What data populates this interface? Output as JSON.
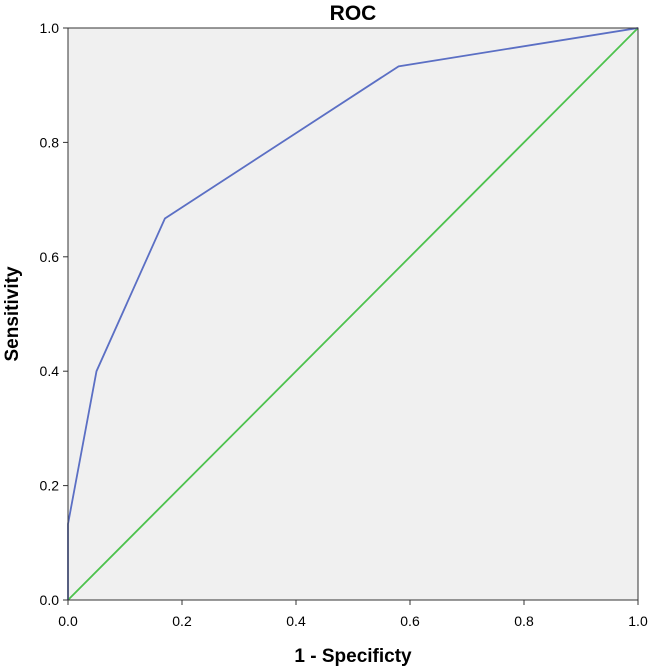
{
  "chart_data": {
    "type": "line",
    "title": "ROC",
    "xlabel": "1 - Specificty",
    "ylabel": "Sensitivity",
    "xlim": [
      0,
      1
    ],
    "ylim": [
      0,
      1
    ],
    "x_ticks": [
      "0.0",
      "0.2",
      "0.4",
      "0.6",
      "0.8",
      "1.0"
    ],
    "y_ticks": [
      "0.0",
      "0.2",
      "0.4",
      "0.6",
      "0.8",
      "1.0"
    ],
    "grid": false,
    "legend": "none",
    "background_color": "#f0f0f0",
    "series": [
      {
        "color": "#5b6fc4",
        "points": [
          [
            0.0,
            0.0
          ],
          [
            0.0,
            0.133
          ],
          [
            0.05,
            0.4
          ],
          [
            0.17,
            0.667
          ],
          [
            0.58,
            0.933
          ],
          [
            1.0,
            1.0
          ]
        ]
      },
      {
        "color": "#4dc24d",
        "points": [
          [
            0.0,
            0.0
          ],
          [
            1.0,
            1.0
          ]
        ]
      }
    ]
  }
}
